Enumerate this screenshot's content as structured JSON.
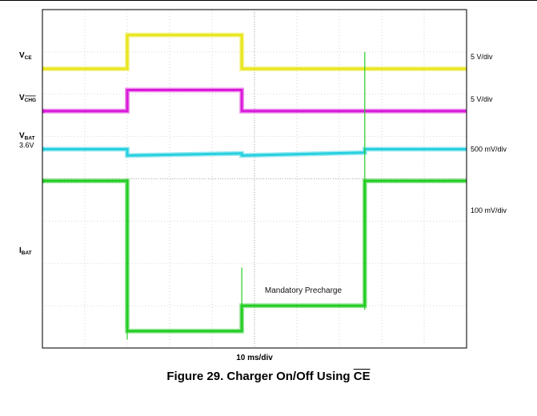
{
  "chart_data": {
    "type": "line",
    "time_scale_label": "10 ms/div",
    "x_divisions": 10,
    "y_divisions": 8,
    "grid": true,
    "channels": [
      {
        "name_main": "V",
        "name_sub": "CE",
        "sub_overline": false,
        "scale": "5 V/div",
        "color": "#e8e61a",
        "x": [
          0,
          2,
          2,
          4.7,
          4.7,
          10
        ],
        "y": [
          6.6,
          6.6,
          7.4,
          7.4,
          6.6,
          6.6
        ]
      },
      {
        "name_main": "V",
        "name_sub": "CHG",
        "sub_overline": true,
        "scale": "5 V/div",
        "color": "#d91ad9",
        "x": [
          0,
          2,
          2,
          4.7,
          4.7,
          10
        ],
        "y": [
          5.6,
          5.6,
          6.1,
          6.1,
          5.6,
          5.6
        ]
      },
      {
        "name_main": "V",
        "name_sub": "BAT",
        "sub_overline": false,
        "level_label": "3.6V",
        "scale": "500 mV/div",
        "color": "#27d0e0",
        "x": [
          0,
          2,
          2,
          4.7,
          4.7,
          7.6,
          7.6,
          10
        ],
        "y": [
          4.7,
          4.7,
          4.55,
          4.6,
          4.55,
          4.62,
          4.7,
          4.7
        ]
      },
      {
        "name_main": "I",
        "name_sub": "BAT",
        "sub_overline": false,
        "scale": "100 mV/div",
        "color": "#22cc22",
        "annotation": "Mandatory  Precharge",
        "x": [
          0,
          2,
          2,
          4.7,
          4.7,
          7.6,
          7.6,
          10
        ],
        "y": [
          3.95,
          3.95,
          0.4,
          0.4,
          1.0,
          1.0,
          3.95,
          3.95
        ]
      }
    ]
  },
  "caption": {
    "prefix": "Figure 29. Charger On/Off Using ",
    "overline_part": "CE"
  }
}
